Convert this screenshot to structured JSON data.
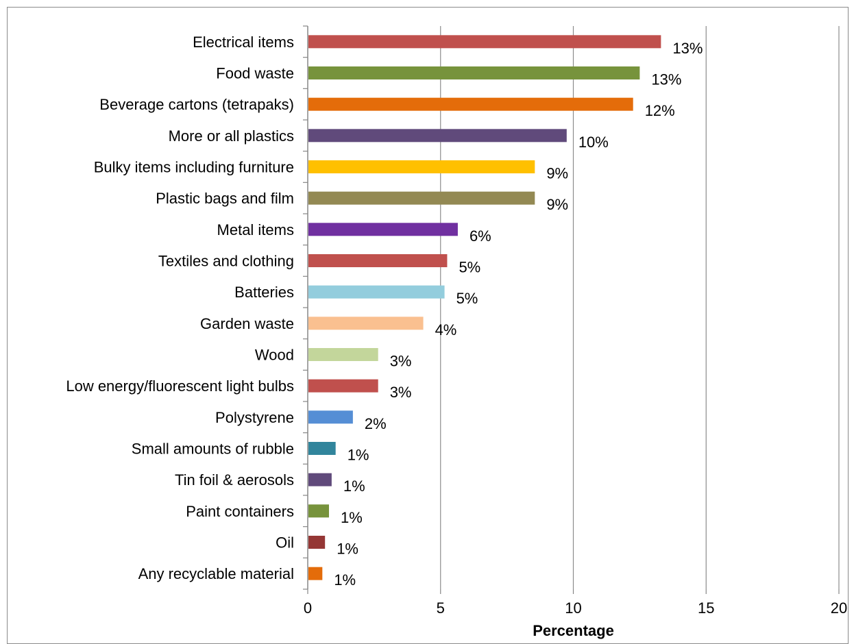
{
  "chart_data": {
    "type": "bar",
    "orientation": "horizontal",
    "title": "",
    "xlabel": "Percentage",
    "ylabel": "",
    "xlim": [
      0,
      20
    ],
    "xticks": [
      "0",
      "5",
      "10",
      "15",
      "20"
    ],
    "grid": "vertical",
    "categories": [
      "Electrical items",
      "Food waste",
      "Beverage cartons (tetrapaks)",
      "More or all plastics",
      "Bulky items including furniture",
      "Plastic bags and film",
      "Metal items",
      "Textiles and clothing",
      "Batteries",
      "Garden waste",
      "Wood",
      "Low energy/fluorescent light bulbs",
      "Polystyrene",
      "Small amounts of rubble",
      "Tin foil & aerosols",
      "Paint containers",
      "Oil",
      "Any recyclable material"
    ],
    "values": [
      13.3,
      12.5,
      12.25,
      9.75,
      8.55,
      8.55,
      5.65,
      5.25,
      5.15,
      4.35,
      2.65,
      2.65,
      1.7,
      1.05,
      0.9,
      0.8,
      0.65,
      0.55
    ],
    "data_labels": [
      "13%",
      "13%",
      "12%",
      "10%",
      "9%",
      "9%",
      "6%",
      "5%",
      "5%",
      "4%",
      "3%",
      "3%",
      "2%",
      "1%",
      "1%",
      "1%",
      "1%",
      "1%"
    ],
    "colors": [
      "#c0504d",
      "#77933c",
      "#e46c0a",
      "#604a7b",
      "#ffc000",
      "#938953",
      "#7030a0",
      "#c0504d",
      "#93cddd",
      "#fac090",
      "#c3d69b",
      "#c0504d",
      "#558ed5",
      "#31859c",
      "#604a7b",
      "#77933c",
      "#953735",
      "#e46c0a"
    ]
  }
}
